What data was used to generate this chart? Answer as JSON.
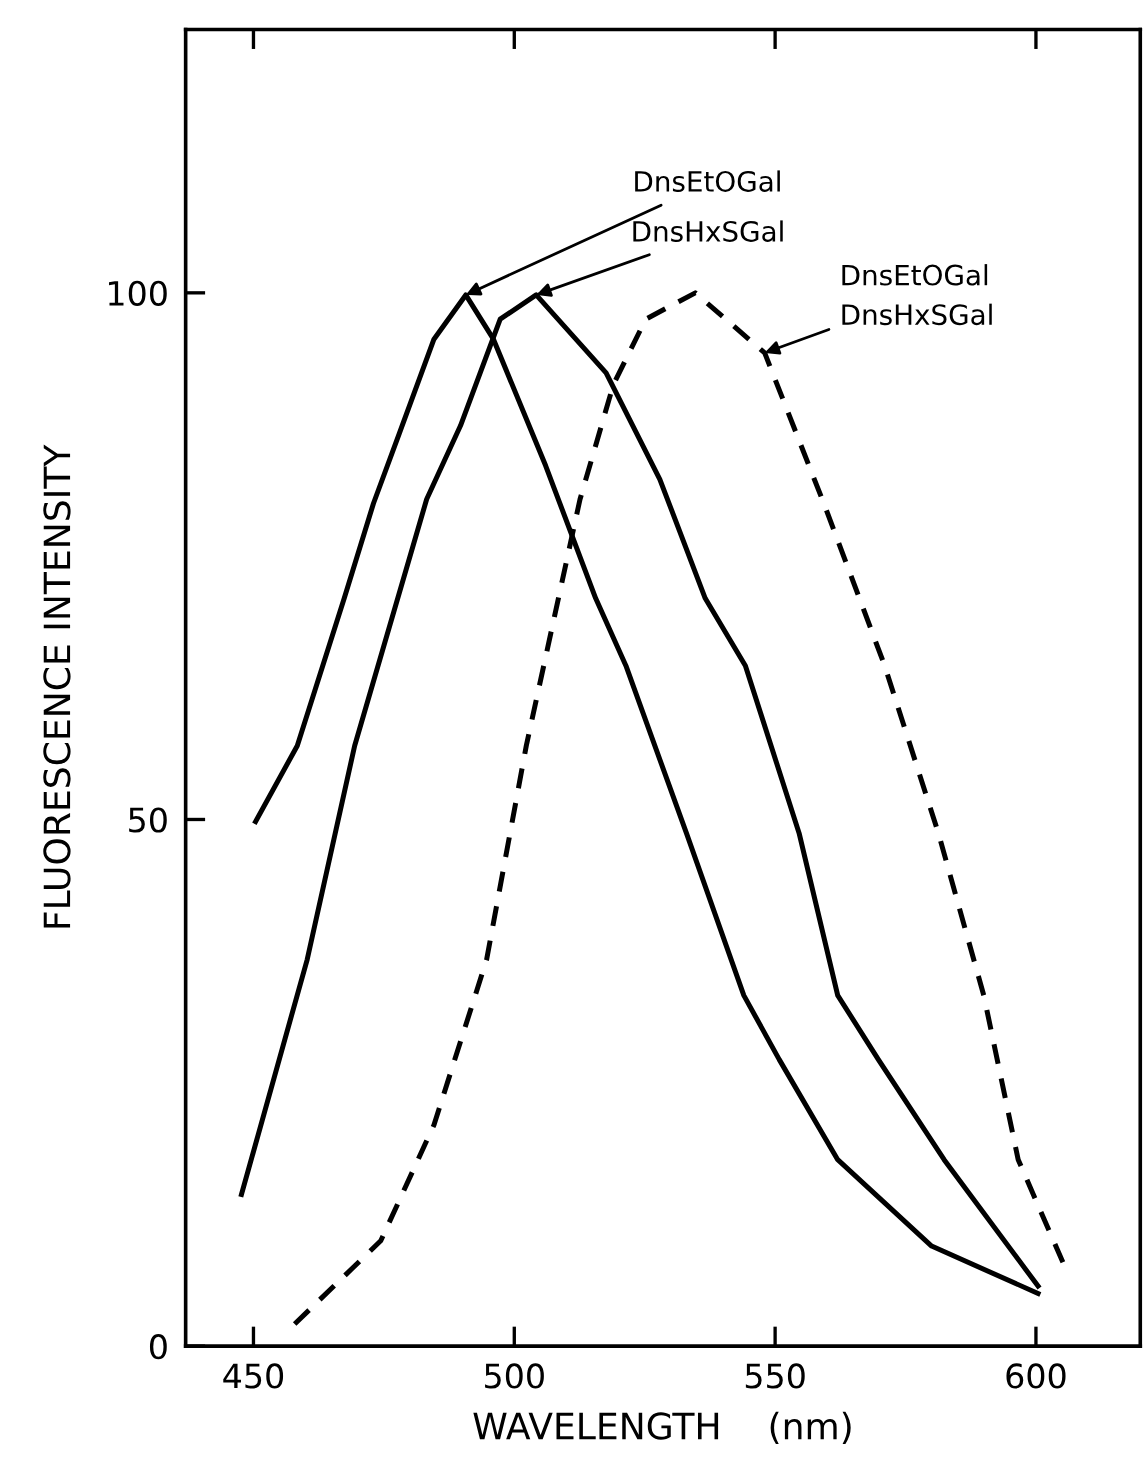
{
  "chart_data": {
    "type": "line",
    "xlabel": "WAVELENGTH    (nm)",
    "ylabel": "FLUORESCENCE INTENSITY",
    "xlim": [
      437,
      620
    ],
    "ylim": [
      0,
      125
    ],
    "xticks": [
      450,
      500,
      550,
      600
    ],
    "yticks": [
      0,
      50,
      100
    ],
    "grid": false,
    "legend": false,
    "series": [
      {
        "color": "#000000",
        "line_style": "solid",
        "x": [
          450.4,
          458.4,
          467.4,
          473,
          478,
          484.6,
          490.7,
          496,
          506,
          515.6,
          521.4,
          533,
          544,
          550.8,
          562,
          580,
          600.4
        ],
        "values": [
          49.8,
          57,
          71,
          80,
          86.7,
          95.6,
          99.8,
          95.6,
          83.6,
          71,
          64.6,
          48.7,
          33.3,
          27.2,
          17.7,
          9.5,
          5
        ]
      },
      {
        "color": "#000000",
        "line_style": "solid",
        "x": [
          447.7,
          460.3,
          469.4,
          483.2,
          489.7,
          497.3,
          504.2,
          517.6,
          527.9,
          536.6,
          544.3,
          554.6,
          562,
          569.8,
          582.4,
          600.4
        ],
        "values": [
          14.4,
          36.7,
          57,
          80.4,
          87.4,
          97.5,
          99.8,
          92.4,
          82.3,
          71,
          64.6,
          48.7,
          33.3,
          27.2,
          17.7,
          5.7
        ]
      },
      {
        "color": "#000000",
        "line_style": "dashed",
        "x": [
          457.9,
          474.4,
          484.6,
          494.7,
          502.3,
          512.6,
          519,
          525.2,
          534.7,
          548,
          559.5,
          571,
          581.3,
          590,
          596.6,
          605.3
        ],
        "values": [
          2.1,
          10,
          21,
          36.7,
          57,
          80.4,
          91.3,
          97.5,
          100,
          94.3,
          79.8,
          64.6,
          48.7,
          33.3,
          17.7,
          7.8
        ]
      }
    ],
    "annotations": [
      {
        "text": "DnsEtOGal",
        "x": 490.7,
        "y": 99.8
      },
      {
        "text": "DnsHxSGal",
        "x": 504.2,
        "y": 99.8
      },
      {
        "text": "DnsEtOGal\nDnsHxSGal",
        "x": 548,
        "y": 94.3
      }
    ]
  }
}
